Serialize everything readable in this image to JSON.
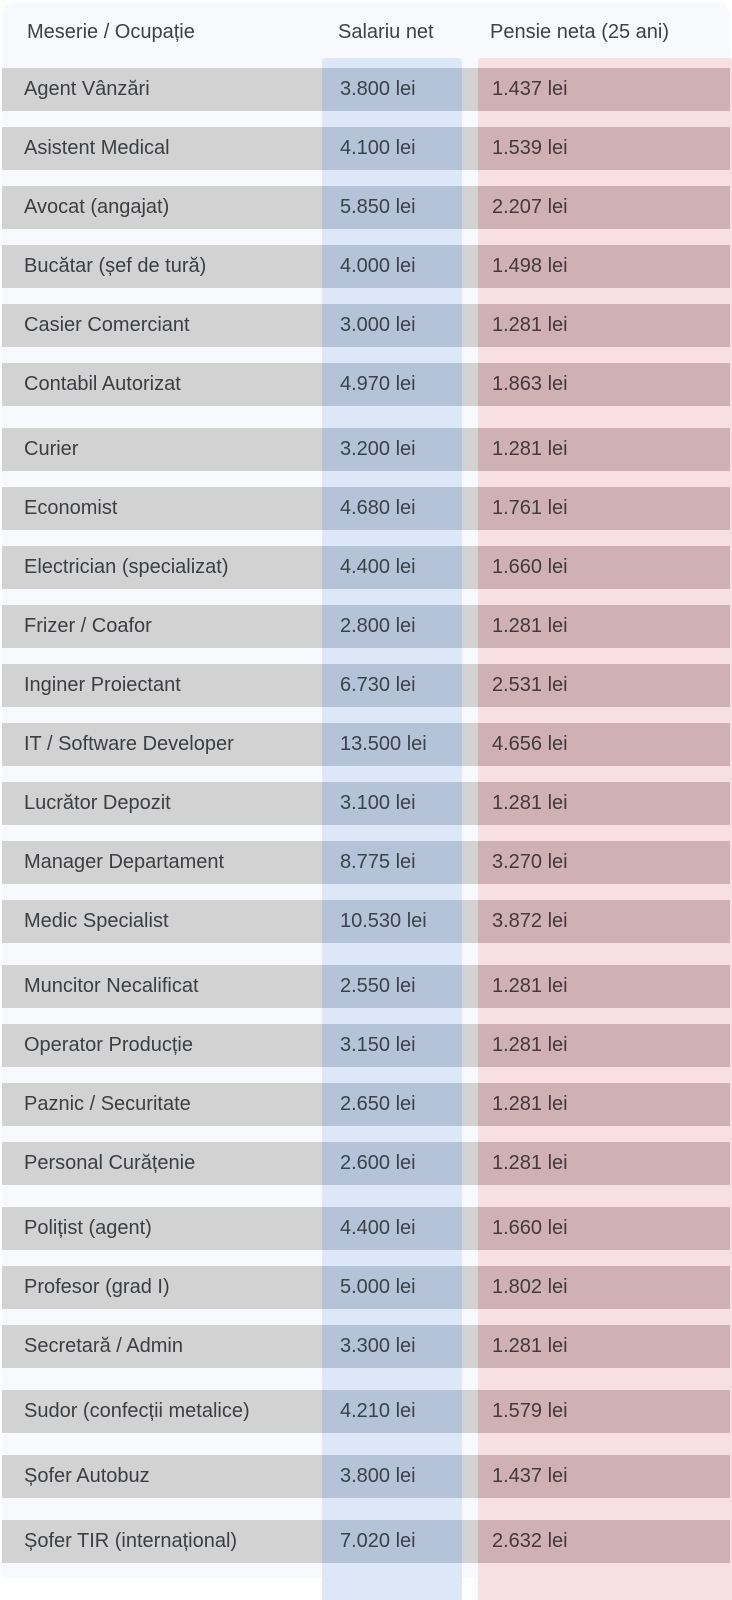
{
  "header": {
    "col_occupation": "Meserie / Ocupație",
    "col_salary": "Salariu net",
    "col_pension": "Pensie neta (25 ani)"
  },
  "rows": [
    {
      "occupation": "Agent Vânzări",
      "salary": "3.800 lei",
      "pension": "1.437 lei"
    },
    {
      "occupation": "Asistent Medical",
      "salary": "4.100 lei",
      "pension": "1.539 lei"
    },
    {
      "occupation": "Avocat (angajat)",
      "salary": "5.850 lei",
      "pension": "2.207 lei"
    },
    {
      "occupation": "Bucătar (șef de tură)",
      "salary": "4.000 lei",
      "pension": "1.498 lei"
    },
    {
      "occupation": "Casier Comerciant",
      "salary": "3.000 lei",
      "pension": "1.281 lei"
    },
    {
      "occupation": "Contabil Autorizat",
      "salary": "4.970 lei",
      "pension": "1.863 lei"
    },
    {
      "occupation": "Curier",
      "salary": "3.200 lei",
      "pension": "1.281 lei"
    },
    {
      "occupation": "Economist",
      "salary": "4.680 lei",
      "pension": "1.761 lei"
    },
    {
      "occupation": "Electrician (specializat)",
      "salary": "4.400 lei",
      "pension": "1.660 lei"
    },
    {
      "occupation": "Frizer / Coafor",
      "salary": "2.800 lei",
      "pension": "1.281 lei"
    },
    {
      "occupation": "Inginer Proiectant",
      "salary": "6.730 lei",
      "pension": "2.531 lei"
    },
    {
      "occupation": "IT / Software Developer",
      "salary": "13.500 lei",
      "pension": "4.656 lei"
    },
    {
      "occupation": "Lucrător Depozit",
      "salary": "3.100 lei",
      "pension": "1.281 lei"
    },
    {
      "occupation": "Manager Departament",
      "salary": "8.775 lei",
      "pension": "3.270 lei"
    },
    {
      "occupation": "Medic Specialist",
      "salary": "10.530 lei",
      "pension": "3.872 lei"
    },
    {
      "occupation": "Muncitor Necalificat",
      "salary": "2.550 lei",
      "pension": "1.281 lei"
    },
    {
      "occupation": "Operator Producție",
      "salary": "3.150 lei",
      "pension": "1.281 lei"
    },
    {
      "occupation": "Paznic / Securitate",
      "salary": "2.650 lei",
      "pension": "1.281 lei"
    },
    {
      "occupation": "Personal Curățenie",
      "salary": "2.600 lei",
      "pension": "1.281 lei"
    },
    {
      "occupation": "Polițist (agent)",
      "salary": "4.400 lei",
      "pension": "1.660 lei"
    },
    {
      "occupation": "Profesor (grad I)",
      "salary": "5.000 lei",
      "pension": "1.802 lei"
    },
    {
      "occupation": "Secretară / Admin",
      "salary": "3.300 lei",
      "pension": "1.281 lei"
    },
    {
      "occupation": "Sudor (confecții metalice)",
      "salary": "4.210 lei",
      "pension": "1.579 lei"
    },
    {
      "occupation": "Șofer Autobuz",
      "salary": "3.800 lei",
      "pension": "1.437 lei"
    },
    {
      "occupation": "Șofer TIR (internațional)",
      "salary": "7.020 lei",
      "pension": "2.632 lei"
    }
  ],
  "colors": {
    "card-bg": "#f7f9fc",
    "stripe": "#d2d2d2",
    "band-blue": "#dce8f8",
    "band-pink": "#f8dfe2",
    "stripe-blue": "#b4c3d7",
    "stripe-pink": "#cfb1b4",
    "header-text": "#3f4245",
    "name-text": "#3b3e42",
    "salary-text": "#3b424c",
    "pension-text": "#44393d"
  },
  "chart_data": {
    "type": "table",
    "title": "Salariu net vs. Pensie neta (25 ani) pe meserii",
    "columns": [
      "Meserie / Ocupație",
      "Salariu net (lei)",
      "Pensie neta 25 ani (lei)"
    ],
    "rows": [
      [
        "Agent Vânzări",
        3800,
        1437
      ],
      [
        "Asistent Medical",
        4100,
        1539
      ],
      [
        "Avocat (angajat)",
        5850,
        2207
      ],
      [
        "Bucătar (șef de tură)",
        4000,
        1498
      ],
      [
        "Casier Comerciant",
        3000,
        1281
      ],
      [
        "Contabil Autorizat",
        4970,
        1863
      ],
      [
        "Curier",
        3200,
        1281
      ],
      [
        "Economist",
        4680,
        1761
      ],
      [
        "Electrician (specializat)",
        4400,
        1660
      ],
      [
        "Frizer / Coafor",
        2800,
        1281
      ],
      [
        "Inginer Proiectant",
        6730,
        2531
      ],
      [
        "IT / Software Developer",
        13500,
        4656
      ],
      [
        "Lucrător Depozit",
        3100,
        1281
      ],
      [
        "Manager Departament",
        8775,
        3270
      ],
      [
        "Medic Specialist",
        10530,
        3872
      ],
      [
        "Muncitor Necalificat",
        2550,
        1281
      ],
      [
        "Operator Producție",
        3150,
        1281
      ],
      [
        "Paznic / Securitate",
        2650,
        1281
      ],
      [
        "Personal Curățenie",
        2600,
        1281
      ],
      [
        "Polițist (agent)",
        4400,
        1660
      ],
      [
        "Profesor (grad I)",
        5000,
        1802
      ],
      [
        "Secretară / Admin",
        3300,
        1281
      ],
      [
        "Sudor (confecții metalice)",
        4210,
        1579
      ],
      [
        "Șofer Autobuz",
        3800,
        1437
      ],
      [
        "Șofer TIR (internațional)",
        7020,
        2632
      ]
    ]
  }
}
